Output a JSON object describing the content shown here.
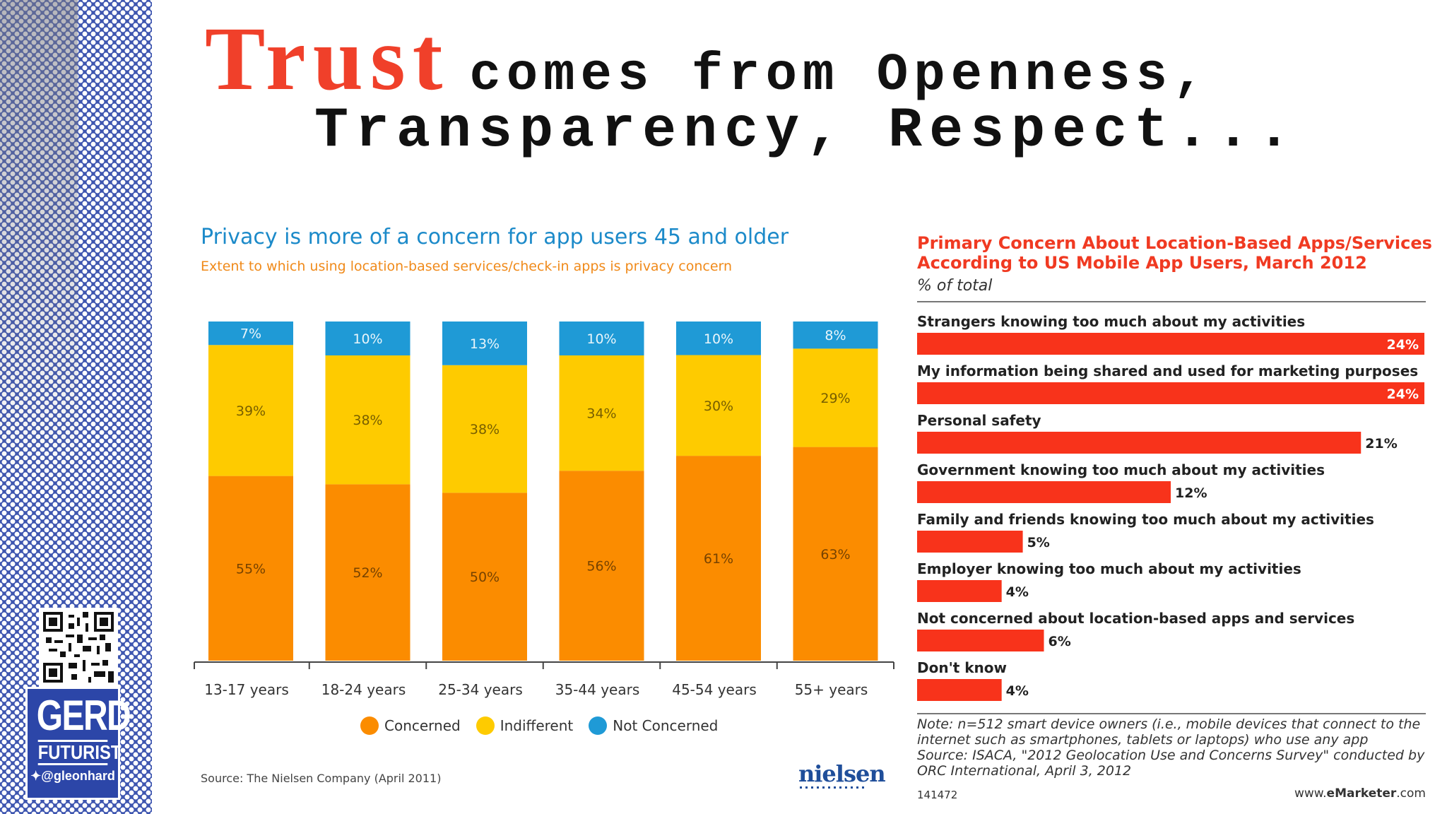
{
  "headline": {
    "word1": "Trust",
    "rest1": "comes from Openness,",
    "line2": "Transparency, Respect..."
  },
  "badge": {
    "name": "GERD",
    "role": "FUTURIST",
    "handle": "@gleonhard"
  },
  "colors": {
    "concerned": "#fb8c00",
    "indifferent": "#fecb00",
    "not_concerned": "#1f9ad6",
    "bar_red": "#f8331b",
    "headline_red": "#f0402a"
  },
  "chart_data": [
    {
      "type": "bar",
      "stacked": true,
      "title": "Privacy is more of a concern for app users 45 and older",
      "subtitle": "Extent to which using location-based services/check-in apps is privacy concern",
      "categories": [
        "13-17 years",
        "18-24 years",
        "25-34 years",
        "35-44 years",
        "45-54 years",
        "55+ years"
      ],
      "series": [
        {
          "name": "Concerned",
          "values": [
            55,
            52,
            50,
            56,
            61,
            63
          ],
          "labels": [
            "55%",
            "52%",
            "50%",
            "56%",
            "61%",
            "63%"
          ]
        },
        {
          "name": "Indifferent",
          "values": [
            39,
            38,
            38,
            34,
            30,
            29
          ],
          "labels": [
            "39%",
            "38%",
            "38%",
            "34%",
            "30%",
            "29%"
          ]
        },
        {
          "name": "Not Concerned",
          "values": [
            7,
            10,
            13,
            10,
            10,
            8
          ],
          "labels": [
            "7%",
            "10%",
            "13%",
            "10%",
            "10%",
            "8%"
          ]
        }
      ],
      "legend_position": "bottom",
      "source": "Source: The Nielsen Company (April 2011)",
      "brand": "nielsen"
    },
    {
      "type": "bar",
      "orientation": "horizontal",
      "title": "Primary Concern About Location-Based Apps/Services According to US Mobile App Users, March 2012",
      "unit_label": "% of total",
      "categories": [
        "Strangers knowing too much about my activities",
        "My information being shared and used for marketing purposes",
        "Personal safety",
        "Government knowing too much about my activities",
        "Family and friends knowing too much about my activities",
        "Employer knowing too much about my activities",
        "Not concerned about location-based apps and services",
        "Don't know"
      ],
      "values": [
        24,
        24,
        21,
        12,
        5,
        4,
        6,
        4
      ],
      "labels": [
        "24%",
        "24%",
        "21%",
        "12%",
        "5%",
        "4%",
        "6%",
        "4%"
      ],
      "xlim": [
        0,
        24
      ],
      "note": "Note: n=512 smart device owners (i.e., mobile devices that connect to the internet such as smartphones, tablets or laptops) who use any app",
      "source": "Source: ISACA, \"2012 Geolocation Use and Concerns Survey\" conducted by ORC International, April 3, 2012",
      "id": "141472",
      "brand_prefix": "www.",
      "brand_bold": "eMarketer",
      "brand_suffix": ".com"
    }
  ]
}
